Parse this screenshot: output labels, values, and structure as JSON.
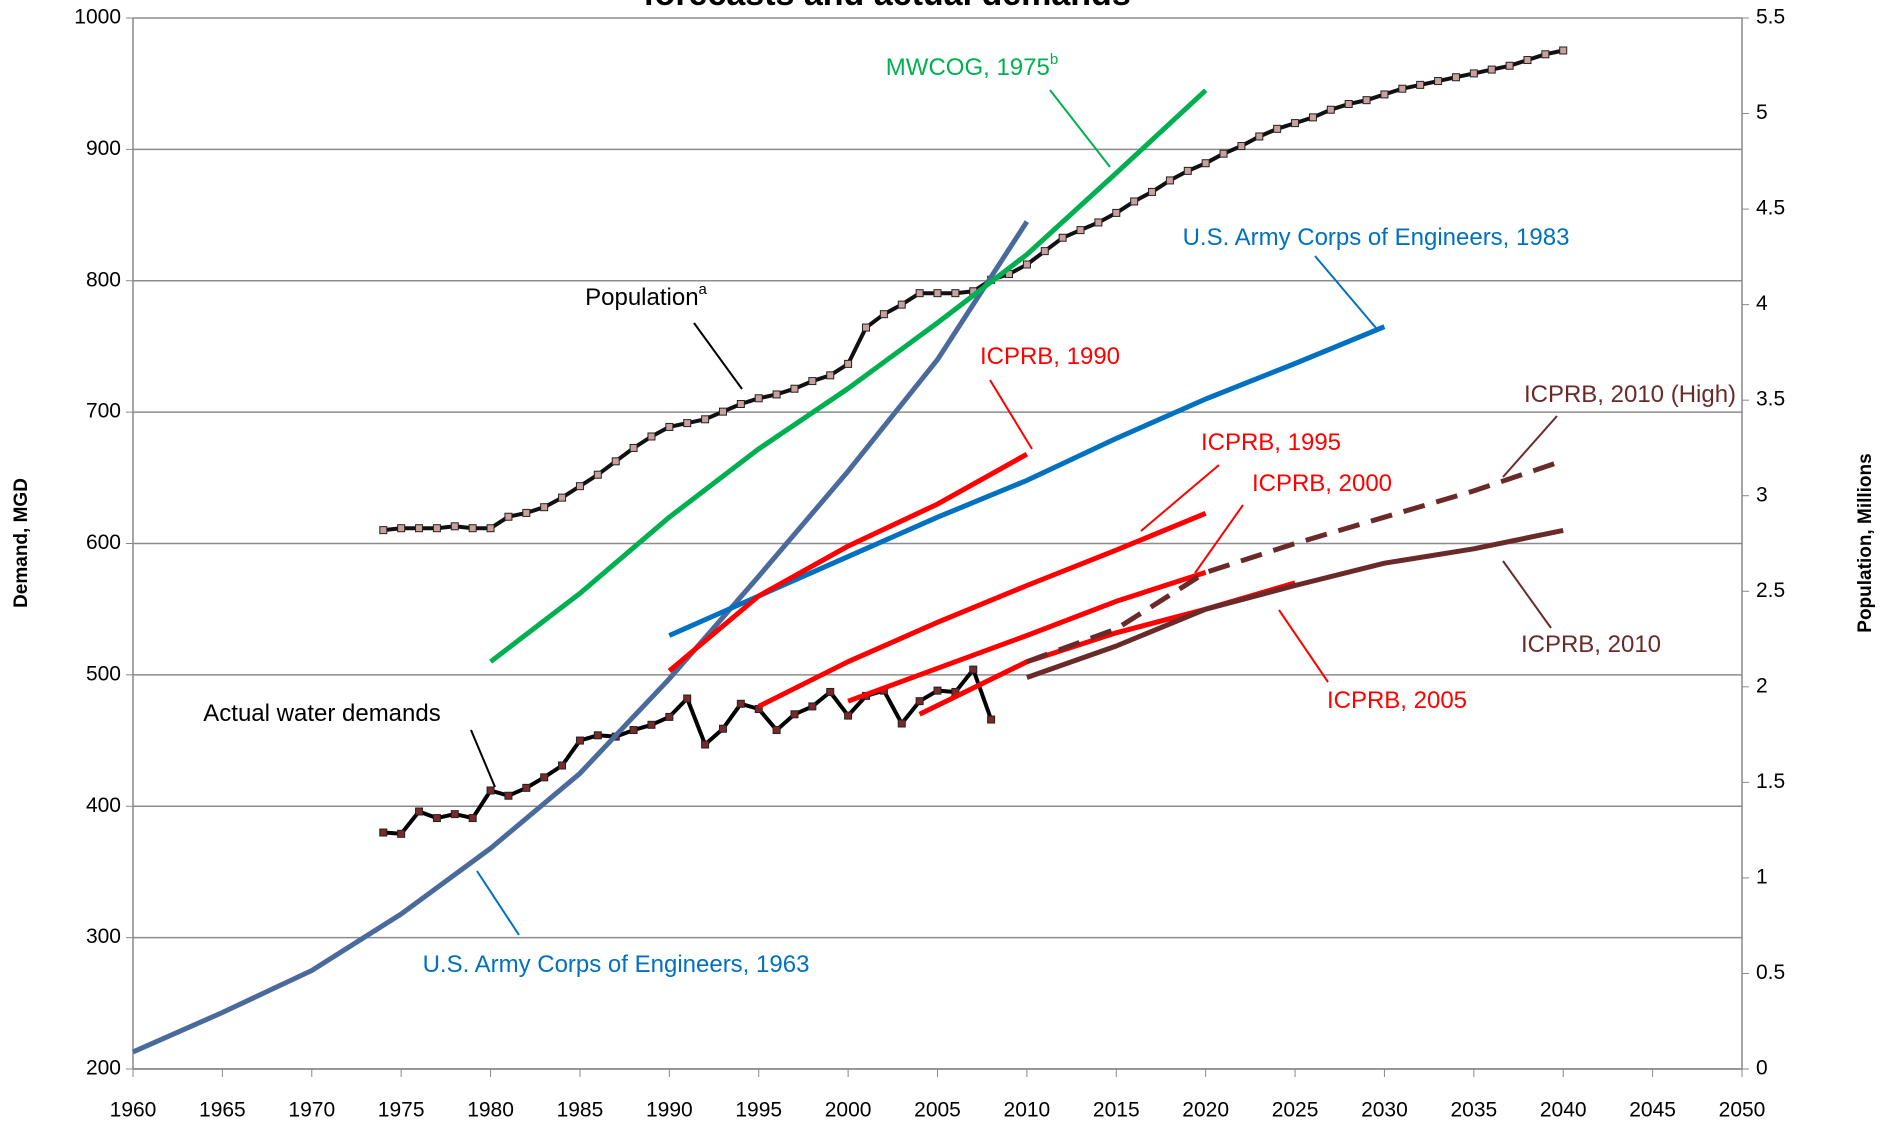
{
  "chart_data": {
    "type": "line",
    "title": "forecasts and actual demands",
    "y_label": "Demand, MGD",
    "y2_label": "Population, Millions",
    "xlim": [
      1960,
      2050
    ],
    "xticks": [
      1960,
      1965,
      1970,
      1975,
      1980,
      1985,
      1990,
      1995,
      2000,
      2005,
      2010,
      2015,
      2020,
      2025,
      2030,
      2035,
      2040,
      2045,
      2050
    ],
    "ylim": [
      200,
      1000
    ],
    "yticks": [
      200,
      300,
      400,
      500,
      600,
      700,
      800,
      900,
      1000
    ],
    "y2lim": [
      0,
      5.5
    ],
    "y2ticks": [
      0,
      0.5,
      1,
      1.5,
      2,
      2.5,
      3,
      3.5,
      4,
      4.5,
      5,
      5.5
    ],
    "grid": true,
    "series": [
      {
        "name": "Population",
        "sup": "a",
        "axis": "y2",
        "color": "#111111",
        "marker": "square",
        "marker_color": "#c9a0a0",
        "label_color": "#000000",
        "x": [
          1974,
          1975,
          1976,
          1977,
          1978,
          1979,
          1980,
          1981,
          1982,
          1983,
          1984,
          1985,
          1986,
          1987,
          1988,
          1989,
          1990,
          1991,
          1992,
          1993,
          1994,
          1995,
          1996,
          1997,
          1998,
          1999,
          2000,
          2001,
          2002,
          2003,
          2004,
          2005,
          2006,
          2007,
          2008,
          2009,
          2010,
          2011,
          2012,
          2013,
          2014,
          2015,
          2016,
          2017,
          2018,
          2019,
          2020,
          2021,
          2022,
          2023,
          2024,
          2025,
          2026,
          2027,
          2028,
          2029,
          2030,
          2031,
          2032,
          2033,
          2034,
          2035,
          2036,
          2037,
          2038,
          2039,
          2040
        ],
        "values": [
          2.82,
          2.83,
          2.83,
          2.83,
          2.84,
          2.83,
          2.83,
          2.89,
          2.91,
          2.94,
          2.99,
          3.05,
          3.11,
          3.18,
          3.25,
          3.31,
          3.36,
          3.38,
          3.4,
          3.44,
          3.48,
          3.51,
          3.53,
          3.56,
          3.6,
          3.63,
          3.69,
          3.88,
          3.95,
          4.0,
          4.06,
          4.06,
          4.06,
          4.07,
          4.13,
          4.16,
          4.21,
          4.28,
          4.35,
          4.39,
          4.43,
          4.48,
          4.54,
          4.59,
          4.65,
          4.7,
          4.74,
          4.79,
          4.83,
          4.88,
          4.92,
          4.95,
          4.98,
          5.02,
          5.05,
          5.07,
          5.1,
          5.13,
          5.15,
          5.17,
          5.19,
          5.21,
          5.23,
          5.25,
          5.28,
          5.31,
          5.33
        ]
      },
      {
        "name": "Actual water demands",
        "color": "#000000",
        "marker": "square",
        "marker_color": "#7a2a2a",
        "label_color": "#000000",
        "x": [
          1974,
          1975,
          1976,
          1977,
          1978,
          1979,
          1980,
          1981,
          1982,
          1983,
          1984,
          1985,
          1986,
          1987,
          1988,
          1989,
          1990,
          1991,
          1992,
          1993,
          1994,
          1995,
          1996,
          1997,
          1998,
          1999,
          2000,
          2001,
          2002,
          2003,
          2004,
          2005,
          2006,
          2007,
          2008
        ],
        "values": [
          380,
          379,
          396,
          391,
          394,
          391,
          412,
          408,
          414,
          422,
          431,
          450,
          454,
          453,
          458,
          462,
          468,
          482,
          447,
          459,
          478,
          474,
          458,
          470,
          476,
          487,
          469,
          484,
          488,
          463,
          480,
          488,
          487,
          504,
          466
        ]
      },
      {
        "name": "U.S. Army Corps of Engineers, 1963",
        "color": "#4a6a9c",
        "label_color": "#0070c0",
        "x": [
          1960,
          1965,
          1970,
          1975,
          1980,
          1985,
          1990,
          1995,
          2000,
          2005,
          2010
        ],
        "values": [
          213,
          243,
          275,
          318,
          368,
          425,
          497,
          575,
          655,
          740,
          845
        ]
      },
      {
        "name": "MWCOG, 1975",
        "sup": "b",
        "color": "#00b050",
        "label_color": "#00b050",
        "x": [
          1980,
          1985,
          1990,
          1995,
          2000,
          2005,
          2010,
          2015,
          2020
        ],
        "values": [
          510,
          562,
          620,
          672,
          718,
          768,
          820,
          882,
          945
        ]
      },
      {
        "name": "U.S. Army Corps of Engineers, 1983",
        "color": "#0070c0",
        "label_color": "#0070c0",
        "x": [
          1990,
          1995,
          2000,
          2005,
          2010,
          2015,
          2020,
          2025,
          2030
        ],
        "values": [
          530,
          560,
          590,
          620,
          648,
          680,
          710,
          737,
          765
        ]
      },
      {
        "name": "ICPRB, 1990",
        "color": "#ff0000",
        "label_color": "#ff0000",
        "x": [
          1990,
          1995,
          2000,
          2005,
          2010
        ],
        "values": [
          503,
          560,
          598,
          630,
          668
        ]
      },
      {
        "name": "ICPRB, 1995",
        "color": "#ff0000",
        "label_color": "#ff0000",
        "x": [
          1995,
          2000,
          2005,
          2010,
          2015,
          2020
        ],
        "values": [
          476,
          510,
          540,
          568,
          595,
          623
        ]
      },
      {
        "name": "ICPRB, 2000",
        "color": "#ff0000",
        "label_color": "#ff0000",
        "x": [
          2000,
          2005,
          2010,
          2015,
          2020
        ],
        "values": [
          480,
          505,
          530,
          556,
          578
        ]
      },
      {
        "name": "ICPRB, 2005",
        "color": "#ff0000",
        "label_color": "#ff0000",
        "x": [
          2004,
          2010,
          2015,
          2020,
          2025
        ],
        "values": [
          470,
          510,
          532,
          550,
          570
        ]
      },
      {
        "name": "ICPRB, 2010",
        "color": "#6b2a2a",
        "label_color": "#6b2a2a",
        "x": [
          2010,
          2015,
          2020,
          2025,
          2030,
          2035,
          2040
        ],
        "values": [
          498,
          522,
          550,
          568,
          585,
          596,
          610
        ]
      },
      {
        "name": "ICPRB, 2010 (High)",
        "color": "#6b2a2a",
        "dash": true,
        "label_color": "#6b2a2a",
        "x": [
          2010,
          2015,
          2020,
          2025,
          2030,
          2035,
          2040
        ],
        "values": [
          510,
          535,
          578,
          600,
          620,
          640,
          663
        ]
      }
    ]
  }
}
